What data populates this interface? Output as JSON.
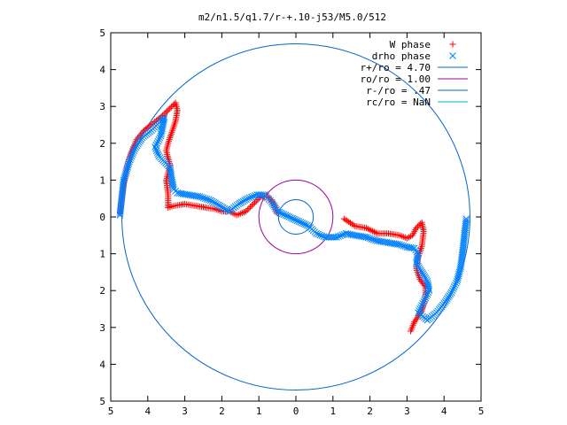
{
  "chart_data": {
    "type": "scatter",
    "title": "m2/n1.5/q1.7/r-+.10-j53/M5.0/512",
    "xlabel": "",
    "ylabel": "",
    "xlim": [
      -5,
      5
    ],
    "ylim": [
      -5,
      5
    ],
    "x_tick_values": [
      -5,
      -4,
      -3,
      -2,
      -1,
      0,
      1,
      2,
      3,
      4,
      5
    ],
    "x_tick_labels": [
      "5",
      "4",
      "3",
      "2",
      "1",
      "0",
      "1",
      "2",
      "3",
      "4",
      "5"
    ],
    "y_tick_values": [
      5,
      4,
      3,
      2,
      1,
      0,
      -1,
      -2,
      -3,
      -4,
      -5
    ],
    "y_tick_labels": [
      "5",
      "4",
      "3",
      "2",
      "1",
      "0",
      "1",
      "2",
      "3",
      "4",
      "5"
    ],
    "grid": false,
    "legend_position": "top-right",
    "series": [
      {
        "name": "W phase",
        "kind": "points",
        "marker": "plus",
        "color": "#ff0000",
        "path": [
          [
            -4.75,
            0.1
          ],
          [
            -4.7,
            0.5
          ],
          [
            -4.65,
            0.9
          ],
          [
            -4.55,
            1.4
          ],
          [
            -4.45,
            1.75
          ],
          [
            -4.3,
            2.1
          ],
          [
            -4.1,
            2.35
          ],
          [
            -3.85,
            2.55
          ],
          [
            -3.6,
            2.75
          ],
          [
            -3.4,
            2.95
          ],
          [
            -3.25,
            3.1
          ],
          [
            -3.2,
            2.9
          ],
          [
            -3.25,
            2.6
          ],
          [
            -3.35,
            2.3
          ],
          [
            -3.45,
            2.0
          ],
          [
            -3.5,
            1.8
          ],
          [
            -3.4,
            1.4
          ],
          [
            -3.5,
            1.0
          ],
          [
            -3.45,
            0.6
          ],
          [
            -3.45,
            0.25
          ],
          [
            -3.3,
            0.3
          ],
          [
            -3.0,
            0.35
          ],
          [
            -2.7,
            0.3
          ],
          [
            -2.4,
            0.25
          ],
          [
            -2.2,
            0.22
          ],
          [
            -2.0,
            0.15
          ],
          [
            -1.8,
            0.15
          ],
          [
            -1.6,
            0.05
          ],
          [
            -1.35,
            0.15
          ],
          [
            -1.15,
            0.35
          ],
          [
            -0.95,
            0.55
          ],
          [
            -0.75,
            0.55
          ],
          [
            -0.6,
            0.35
          ],
          [
            -0.5,
            0.1
          ],
          [
            1.3,
            -0.05
          ],
          [
            1.6,
            -0.25
          ],
          [
            1.9,
            -0.3
          ],
          [
            2.2,
            -0.45
          ],
          [
            2.5,
            -0.45
          ],
          [
            2.8,
            -0.5
          ],
          [
            3.0,
            -0.58
          ],
          [
            3.15,
            -0.5
          ],
          [
            3.25,
            -0.3
          ],
          [
            3.4,
            -0.15
          ],
          [
            3.45,
            -0.4
          ],
          [
            3.4,
            -0.8
          ],
          [
            3.3,
            -1.1
          ],
          [
            3.25,
            -1.4
          ],
          [
            3.35,
            -1.7
          ],
          [
            3.5,
            -1.9
          ],
          [
            3.5,
            -2.2
          ],
          [
            3.4,
            -2.55
          ],
          [
            3.2,
            -2.85
          ],
          [
            3.1,
            -3.1
          ]
        ]
      },
      {
        "name": "drho phase",
        "kind": "points",
        "marker": "cross",
        "color": "#0080ff",
        "path": [
          [
            -4.75,
            0.05
          ],
          [
            -4.7,
            0.55
          ],
          [
            -4.65,
            1.0
          ],
          [
            -4.5,
            1.5
          ],
          [
            -4.35,
            1.85
          ],
          [
            -4.15,
            2.15
          ],
          [
            -3.9,
            2.35
          ],
          [
            -3.7,
            2.55
          ],
          [
            -3.55,
            2.7
          ],
          [
            -3.65,
            2.2
          ],
          [
            -3.8,
            1.9
          ],
          [
            -3.7,
            1.65
          ],
          [
            -3.55,
            1.5
          ],
          [
            -3.4,
            1.35
          ],
          [
            -3.35,
            1.0
          ],
          [
            -3.3,
            0.75
          ],
          [
            -3.2,
            0.65
          ],
          [
            -2.9,
            0.6
          ],
          [
            -2.6,
            0.55
          ],
          [
            -2.3,
            0.45
          ],
          [
            -2.05,
            0.3
          ],
          [
            -1.8,
            0.15
          ],
          [
            -1.55,
            0.35
          ],
          [
            -1.3,
            0.5
          ],
          [
            -1.05,
            0.6
          ],
          [
            -0.85,
            0.6
          ],
          [
            -0.65,
            0.4
          ],
          [
            -0.5,
            0.15
          ],
          [
            0.35,
            -0.25
          ],
          [
            0.55,
            -0.45
          ],
          [
            0.8,
            -0.55
          ],
          [
            1.1,
            -0.55
          ],
          [
            1.35,
            -0.45
          ],
          [
            1.6,
            -0.5
          ],
          [
            1.9,
            -0.55
          ],
          [
            2.2,
            -0.65
          ],
          [
            2.5,
            -0.7
          ],
          [
            2.8,
            -0.75
          ],
          [
            3.0,
            -0.82
          ],
          [
            3.2,
            -0.85
          ],
          [
            3.3,
            -1.0
          ],
          [
            3.25,
            -1.25
          ],
          [
            3.4,
            -1.5
          ],
          [
            3.55,
            -1.75
          ],
          [
            3.6,
            -2.0
          ],
          [
            3.45,
            -2.3
          ],
          [
            3.3,
            -2.6
          ],
          [
            3.55,
            -2.8
          ],
          [
            3.8,
            -2.6
          ],
          [
            4.0,
            -2.35
          ],
          [
            4.2,
            -2.05
          ],
          [
            4.35,
            -1.75
          ],
          [
            4.45,
            -1.35
          ],
          [
            4.5,
            -0.95
          ],
          [
            4.55,
            -0.5
          ],
          [
            4.6,
            -0.05
          ]
        ]
      },
      {
        "name": "r+/ro = 4.70",
        "kind": "circle",
        "radius": 4.7,
        "color": "#0066cc"
      },
      {
        "name": "ro/ro = 1.00",
        "kind": "circle",
        "radius": 1.0,
        "color": "#a000a0"
      },
      {
        "name": "r-/ro = .47",
        "kind": "circle",
        "radius": 0.47,
        "color": "#0066cc"
      },
      {
        "name": "rc/ro = NaN",
        "kind": "circle",
        "radius": null,
        "color": "#00b0d0"
      }
    ]
  }
}
